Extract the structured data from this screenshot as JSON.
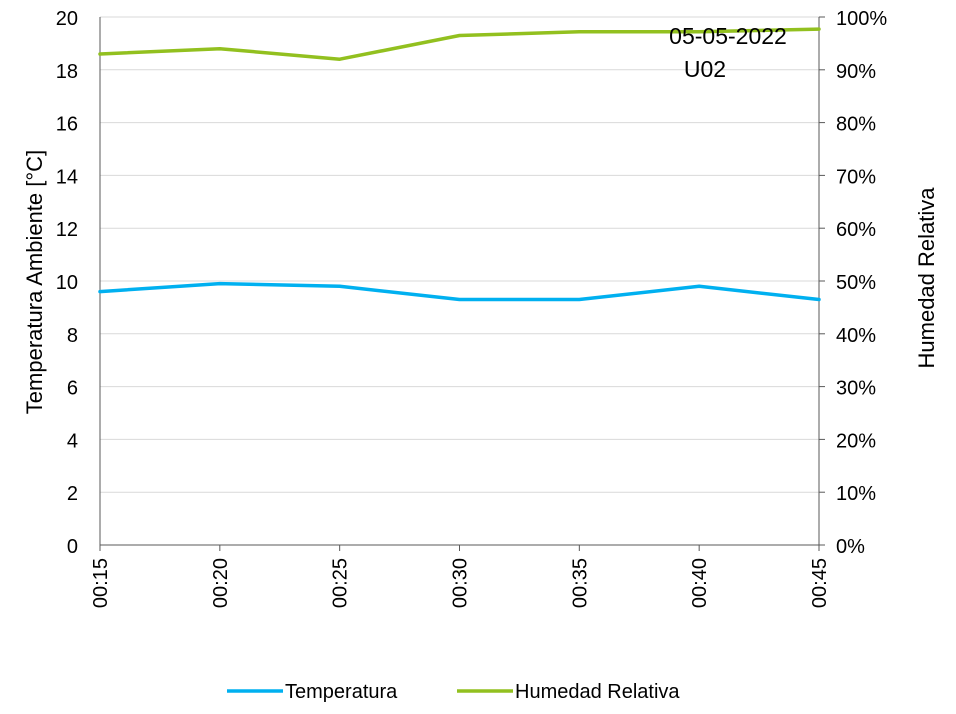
{
  "chart_data": {
    "type": "line",
    "categories": [
      "00:15",
      "00:20",
      "00:25",
      "00:30",
      "00:35",
      "00:40",
      "00:45"
    ],
    "series": [
      {
        "name": "Temperatura",
        "axis": "left",
        "color": "#00b0f0",
        "values": [
          9.6,
          9.9,
          9.8,
          9.3,
          9.3,
          9.8,
          9.3
        ]
      },
      {
        "name": "Humedad Relativa",
        "axis": "right",
        "color": "#92c01f",
        "values": [
          0.93,
          0.94,
          0.92,
          0.965,
          0.972,
          0.972,
          0.977
        ]
      }
    ],
    "ylabel": "Temperatura Ambiente [°C]",
    "y2label": "Humedad Relativa",
    "ylim": [
      0,
      20
    ],
    "y2lim": [
      0,
      1
    ],
    "yticks": [
      "0",
      "2",
      "4",
      "6",
      "8",
      "10",
      "12",
      "14",
      "16",
      "18",
      "20"
    ],
    "y2ticks": [
      "0%",
      "10%",
      "20%",
      "30%",
      "40%",
      "50%",
      "60%",
      "70%",
      "80%",
      "90%",
      "100%"
    ],
    "annotation": [
      "05-05-2022",
      "U02"
    ],
    "grid": true,
    "legend_position": "bottom"
  }
}
